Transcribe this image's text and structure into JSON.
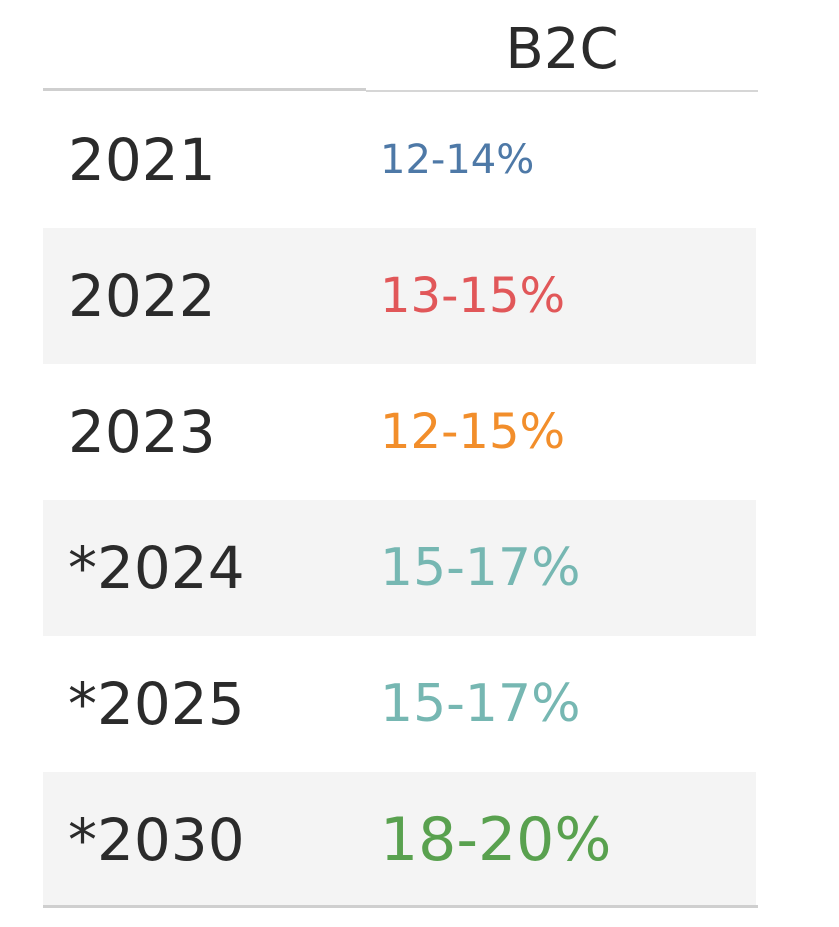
{
  "chart_data": {
    "type": "table",
    "column_header": "B2C",
    "rows": [
      {
        "year": "2021",
        "value": "12-14%",
        "color": "#4e79a7",
        "emphasis": 1
      },
      {
        "year": "2022",
        "value": "13-15%",
        "color": "#e15759",
        "emphasis": 2
      },
      {
        "year": "2023",
        "value": "12-15%",
        "color": "#f28e2b",
        "emphasis": 2
      },
      {
        "year": "*2024",
        "value": "15-17%",
        "color": "#76b7b2",
        "emphasis": 3
      },
      {
        "year": "*2025",
        "value": "15-17%",
        "color": "#76b7b2",
        "emphasis": 3
      },
      {
        "year": "*2030",
        "value": "18-20%",
        "color": "#59a14f",
        "emphasis": 4
      }
    ]
  }
}
